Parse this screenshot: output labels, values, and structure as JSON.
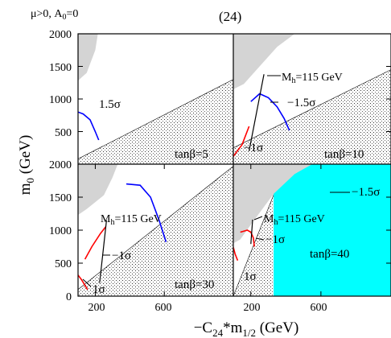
{
  "header": {
    "params": "μ>0, A",
    "params_sub": "0",
    "params_end": "=0",
    "figure_number": "(24)"
  },
  "axes": {
    "ylabel_main": "m",
    "ylabel_sub": "0",
    "ylabel_unit": " (GeV)",
    "xlabel_prefix": "−C",
    "xlabel_sub1": "24",
    "xlabel_mid": "*m",
    "xlabel_sub2": "1/2",
    "xlabel_unit": " (GeV)",
    "yticks_top": [
      "500",
      "1000",
      "1500",
      "2000"
    ],
    "yticks_bottom": [
      "0",
      "500",
      "1000",
      "1500",
      "2000"
    ],
    "xticks": [
      "200",
      "600"
    ]
  },
  "panels": [
    {
      "id": "p1",
      "label": "tanβ=5",
      "annotations": [
        {
          "text": "1.5σ"
        }
      ]
    },
    {
      "id": "p2",
      "label": "tanβ=10",
      "annotations": [
        {
          "text": "M",
          "sub": "h",
          "rest": "=115 GeV"
        },
        {
          "text": "−1.5σ"
        },
        {
          "text": "−1σ"
        }
      ]
    },
    {
      "id": "p3",
      "label": "tanβ=30",
      "annotations": [
        {
          "text": "−1.5σ"
        },
        {
          "text": "M",
          "sub": "h",
          "rest": "=115 GeV"
        },
        {
          "text": "−1σ"
        },
        {
          "text": "1σ"
        }
      ]
    },
    {
      "id": "p4",
      "label": "tanβ=40",
      "annotations": [
        {
          "text": "M",
          "sub": "h",
          "rest": "=115 GeV"
        },
        {
          "text": "−1σ"
        },
        {
          "text": "1σ"
        }
      ]
    }
  ],
  "colors": {
    "excluded_gray": "#d4d4d4",
    "dotted_region": "#000000",
    "cyan_region": "#00ffff",
    "blue_contour": "#0000ff",
    "red_contour": "#ff0000",
    "higgs_line": "#000000"
  },
  "chart_data": {
    "type": "line",
    "layout": "2x2 panels",
    "x_axis": {
      "label": "−C24*m1/2 (GeV)",
      "range": [
        100,
        1000
      ],
      "ticks": [
        200,
        600
      ]
    },
    "y_axis": {
      "label": "m0 (GeV)",
      "range": [
        0,
        2000
      ],
      "ticks": [
        0,
        500,
        1000,
        1500,
        2000
      ]
    },
    "panels": [
      {
        "label": "tanβ=5",
        "gray_region_right_edge": [
          [
            100,
            2000
          ],
          [
            215,
            2000
          ],
          [
            200,
            1750
          ],
          [
            150,
            1400
          ],
          [
            120,
            1330
          ],
          [
            100,
            1280
          ]
        ],
        "dotted_region_upper_edge": [
          [
            100,
            0
          ],
          [
            100,
            80
          ],
          [
            1000,
            1300
          ]
        ],
        "curves": [
          {
            "name": "1.5σ",
            "color": "blue",
            "x": [
              100,
              130,
              170,
              200,
              220
            ],
            "y": [
              800,
              770,
              680,
              500,
              370
            ]
          }
        ]
      },
      {
        "label": "tanβ=10",
        "gray_region_right_edge": [
          [
            100,
            2000
          ],
          [
            450,
            2000
          ],
          [
            350,
            1800
          ],
          [
            250,
            1500
          ],
          [
            160,
            1230
          ],
          [
            100,
            1150
          ]
        ],
        "dotted_region_upper_edge": [
          [
            100,
            250
          ],
          [
            1000,
            1450
          ]
        ],
        "curves": [
          {
            "name": "−1.5σ",
            "color": "blue",
            "x": [
              200,
              250,
              300,
              350,
              390,
              420
            ],
            "y": [
              960,
              1080,
              1020,
              880,
              700,
              520
            ]
          },
          {
            "name": "−1σ",
            "color": "red",
            "x": [
              100,
              150,
              190
            ],
            "y": [
              120,
              300,
              580
            ]
          },
          {
            "name": "Mh=115 GeV",
            "color": "black",
            "x": [
              190,
              275
            ],
            "y": [
              200,
              1380
            ]
          }
        ]
      },
      {
        "label": "tanβ=30",
        "gray_region_right_edge": [
          [
            100,
            2000
          ],
          [
            330,
            2000
          ],
          [
            300,
            1800
          ],
          [
            250,
            1530
          ],
          [
            150,
            1320
          ],
          [
            100,
            1230
          ]
        ],
        "dotted_region_upper_edge": [
          [
            100,
            100
          ],
          [
            1000,
            1970
          ]
        ],
        "curves": [
          {
            "name": "−1.5σ",
            "color": "blue",
            "x": [
              380,
              460,
              520,
              570,
              610
            ],
            "y": [
              1700,
              1680,
              1500,
              1150,
              820
            ]
          },
          {
            "name": "−1σ",
            "color": "red",
            "x": [
              140,
              180,
              230,
              260
            ],
            "y": [
              560,
              750,
              950,
              1050
            ]
          },
          {
            "name": "1σ",
            "color": "red",
            "x": [
              100,
              120,
              155
            ],
            "y": [
              320,
              250,
              100
            ]
          },
          {
            "name": "Mh=115 GeV",
            "color": "black",
            "x": [
              225,
              265
            ],
            "y": [
              200,
              1150
            ]
          }
        ]
      },
      {
        "label": "tanβ=40",
        "gray_region_right_edge": [
          [
            100,
            2000
          ],
          [
            550,
            2000
          ],
          [
            450,
            1850
          ],
          [
            330,
            1550
          ],
          [
            210,
            1120
          ],
          [
            140,
            860
          ],
          [
            100,
            800
          ]
        ],
        "dotted_region_upper_edge": [
          [
            100,
            0
          ],
          [
            400,
            2000
          ]
        ],
        "cyan_region_x_min": 330,
        "curves": [
          {
            "name": "−1σ",
            "color": "red",
            "x": [
              140,
              180,
              200,
              215,
              220
            ],
            "y": [
              970,
              1000,
              970,
              880,
              750
            ]
          },
          {
            "name": "1σ",
            "color": "red",
            "x": [
              100,
              110,
              125
            ],
            "y": [
              740,
              640,
              540
            ]
          },
          {
            "name": "Mh=115 GeV",
            "color": "black",
            "x": [
              200,
              210
            ],
            "y": [
              790,
              1160
            ]
          }
        ]
      }
    ]
  }
}
